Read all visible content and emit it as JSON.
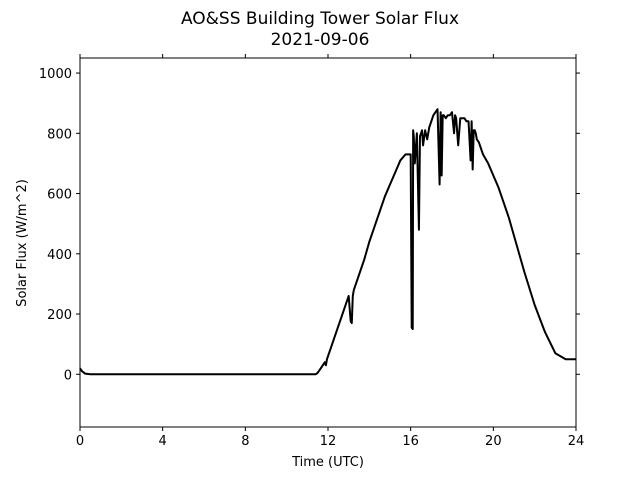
{
  "chart_data": {
    "type": "line",
    "title": "AO&SS Building Tower Solar Flux",
    "subtitle": "2021-09-06",
    "xlabel": "Time (UTC)",
    "ylabel": "Solar Flux (W/m^2)",
    "xlim": [
      0,
      24
    ],
    "ylim": [
      -175,
      1050
    ],
    "x_ticks": [
      0,
      4,
      8,
      12,
      16,
      20,
      24
    ],
    "y_ticks": [
      0,
      200,
      400,
      600,
      800,
      1000
    ],
    "grid": false,
    "line_color": "#000000",
    "series": [
      {
        "x": [
          0,
          0.1,
          0.25,
          0.5,
          1,
          2,
          4,
          6,
          8,
          10,
          11.4,
          11.5,
          11.6,
          11.75,
          11.85,
          11.9,
          11.95,
          12.0,
          12.1,
          12.25,
          12.5,
          12.75,
          13.0,
          13.1,
          13.15,
          13.2,
          13.25,
          13.3,
          13.5,
          13.75,
          14.0,
          14.25,
          14.5,
          14.75,
          15.0,
          15.25,
          15.5,
          15.75,
          15.9,
          16.0,
          16.05,
          16.1,
          16.12,
          16.15,
          16.2,
          16.3,
          16.4,
          16.45,
          16.5,
          16.55,
          16.6,
          16.7,
          16.8,
          16.9,
          17.0,
          17.1,
          17.2,
          17.3,
          17.4,
          17.45,
          17.5,
          17.55,
          17.6,
          17.7,
          17.8,
          17.9,
          18.0,
          18.1,
          18.15,
          18.2,
          18.3,
          18.4,
          18.5,
          18.6,
          18.7,
          18.8,
          18.9,
          18.95,
          19.0,
          19.05,
          19.1,
          19.15,
          19.2,
          19.3,
          19.4,
          19.5,
          19.75,
          20.0,
          20.25,
          20.5,
          20.75,
          21.0,
          21.5,
          22.0,
          22.5,
          23.0,
          23.5,
          24.0
        ],
        "y": [
          20,
          10,
          2,
          0,
          0,
          0,
          0,
          0,
          0,
          0,
          0,
          5,
          15,
          30,
          40,
          30,
          50,
          60,
          80,
          110,
          160,
          210,
          260,
          175,
          170,
          260,
          280,
          290,
          330,
          380,
          440,
          490,
          540,
          590,
          630,
          670,
          710,
          730,
          730,
          730,
          155,
          150,
          810,
          790,
          700,
          800,
          480,
          790,
          800,
          810,
          760,
          810,
          780,
          820,
          840,
          860,
          870,
          880,
          630,
          870,
          660,
          860,
          860,
          850,
          860,
          860,
          870,
          800,
          860,
          850,
          760,
          850,
          850,
          850,
          840,
          840,
          710,
          840,
          680,
          810,
          810,
          800,
          780,
          770,
          750,
          730,
          700,
          660,
          620,
          570,
          520,
          460,
          340,
          230,
          140,
          70,
          50,
          50
        ]
      }
    ]
  }
}
